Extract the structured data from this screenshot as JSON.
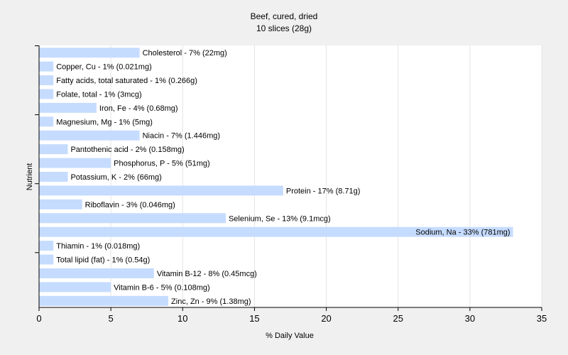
{
  "chart_data": {
    "type": "bar",
    "orientation": "horizontal",
    "title": "Beef, cured, dried",
    "subtitle": "10 slices (28g)",
    "xlabel": "% Daily Value",
    "ylabel": "Nutrient",
    "xlim": [
      0,
      35
    ],
    "xticks": [
      0,
      5,
      10,
      15,
      20,
      25,
      30,
      35
    ],
    "grid": true,
    "bar_color": "#c6dcff",
    "categories": [
      "Cholesterol",
      "Copper, Cu",
      "Fatty acids, total saturated",
      "Folate, total",
      "Iron, Fe",
      "Magnesium, Mg",
      "Niacin",
      "Pantothenic acid",
      "Phosphorus, P",
      "Potassium, K",
      "Protein",
      "Riboflavin",
      "Selenium, Se",
      "Sodium, Na",
      "Thiamin",
      "Total lipid (fat)",
      "Vitamin B-12",
      "Vitamin B-6",
      "Zinc, Zn"
    ],
    "values": [
      7,
      1,
      1,
      1,
      4,
      1,
      7,
      2,
      5,
      2,
      17,
      3,
      13,
      33,
      1,
      1,
      8,
      5,
      9
    ],
    "labels": [
      "Cholesterol - 7% (22mg)",
      "Copper, Cu - 1% (0.021mg)",
      "Fatty acids, total saturated - 1% (0.266g)",
      "Folate, total - 1% (3mcg)",
      "Iron, Fe - 4% (0.68mg)",
      "Magnesium, Mg - 1% (5mg)",
      "Niacin - 7% (1.446mg)",
      "Pantothenic acid - 2% (0.158mg)",
      "Phosphorus, P - 5% (51mg)",
      "Potassium, K - 2% (66mg)",
      "Protein - 17% (8.71g)",
      "Riboflavin - 3% (0.046mg)",
      "Selenium, Se - 13% (9.1mcg)",
      "Sodium, Na - 33% (781mg)",
      "Thiamin - 1% (0.018mg)",
      "Total lipid (fat) - 1% (0.54g)",
      "Vitamin B-12 - 8% (0.45mcg)",
      "Vitamin B-6 - 5% (0.108mg)",
      "Zinc, Zn - 9% (1.38mg)"
    ]
  }
}
